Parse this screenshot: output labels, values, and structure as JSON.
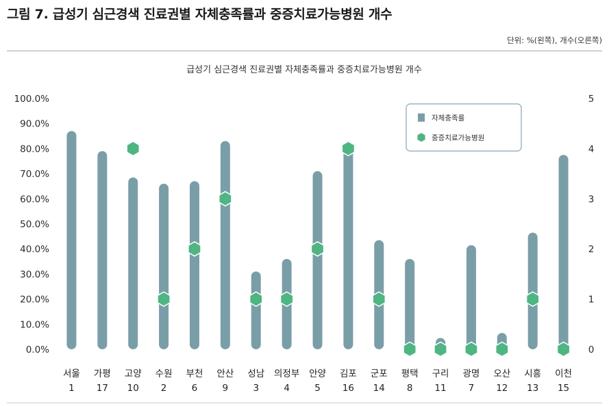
{
  "figure": {
    "title": "그림 7. 급성기 심근경색 진료권별 자체충족률과 중증치료가능병원 개수",
    "unit_note": "단위: %(왼쪽), 개수(오른쪽)"
  },
  "colors": {
    "bar": "#7a9ea8",
    "marker": "#4fb582",
    "marker_stroke": "#ffffff",
    "legend_border": "#7fa7b6",
    "rule": "#9aaab0"
  },
  "chart_data": {
    "type": "bar",
    "title": "급성기 심근경색 진료권별 자체충족률과 중증치료가능병원 개수",
    "categories": [
      "서울",
      "가평",
      "고양",
      "수원",
      "부천",
      "안산",
      "성남",
      "의정부",
      "안양",
      "김포",
      "군포",
      "평택",
      "구리",
      "광명",
      "오산",
      "시흥",
      "이천"
    ],
    "category_sublabels": [
      "1",
      "17",
      "10",
      "2",
      "6",
      "9",
      "3",
      "4",
      "5",
      "16",
      "14",
      "8",
      "11",
      "7",
      "12",
      "13",
      "15"
    ],
    "series": [
      {
        "name": "자체충족률",
        "type": "bar",
        "axis": "left",
        "values": [
          87.0,
          79.0,
          68.5,
          66.0,
          67.0,
          83.0,
          31.0,
          36.0,
          71.0,
          80.0,
          43.5,
          36.0,
          4.5,
          41.5,
          6.5,
          46.5,
          77.5
        ]
      },
      {
        "name": "중증치료가능병원",
        "type": "scatter",
        "axis": "right",
        "values": [
          null,
          null,
          4,
          1,
          2,
          3,
          1,
          1,
          2,
          4,
          1,
          0,
          0,
          0,
          0,
          1,
          0
        ]
      }
    ],
    "y_left": {
      "ylim": [
        0,
        100
      ],
      "ticks": [
        "0.0%",
        "10.0%",
        "20.0%",
        "30.0%",
        "40.0%",
        "50.0%",
        "60.0%",
        "70.0%",
        "80.0%",
        "90.0%",
        "100.0%"
      ]
    },
    "y_right": {
      "ylim": [
        0,
        5
      ],
      "ticks": [
        "0",
        "1",
        "2",
        "3",
        "4",
        "5"
      ]
    },
    "grid": false,
    "legend": {
      "position": "top-right",
      "entries": [
        "자체충족률",
        "중증치료가능병원"
      ]
    }
  }
}
